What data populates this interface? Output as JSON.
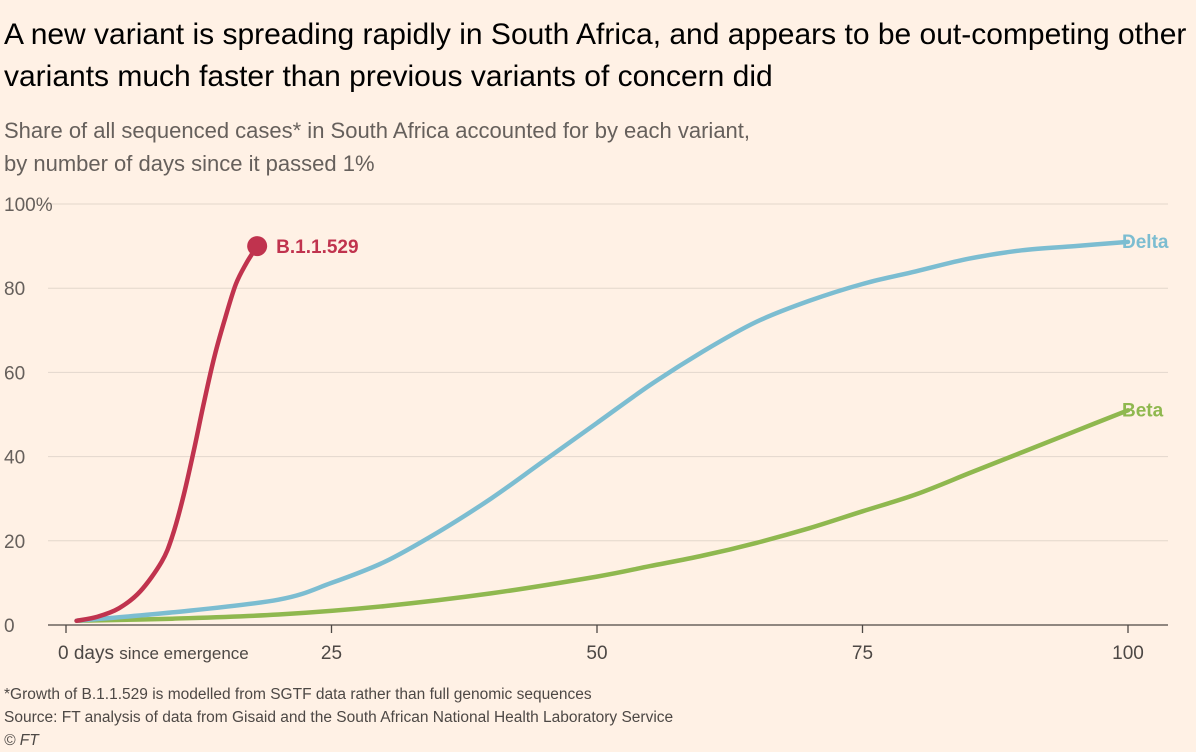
{
  "title": "A new variant is spreading rapidly in South Africa, and appears to be out-competing other variants much faster than previous variants of concern did",
  "subtitle_line1": "Share of all sequenced cases* in South Africa accounted for by each variant,",
  "subtitle_line2": "by number of days since it passed 1%",
  "footnote": "*Growth of B.1.1.529 is modelled from SGTF data rather than full genomic sequences",
  "source": "Source: FT analysis of data from Gisaid and the South African National Health Laboratory Service",
  "copyright": "© FT",
  "chart_data": {
    "type": "line",
    "title": "A new variant is spreading rapidly in South Africa, and appears to be out-competing other variants much faster than previous variants of concern did",
    "xlabel": "days since emergence",
    "ylabel": "Share of all sequenced cases (%)",
    "xlim": [
      0,
      100
    ],
    "ylim": [
      0,
      100
    ],
    "x_tick_values": [
      0,
      25,
      50,
      75,
      100
    ],
    "x_tick_labels": [
      "0",
      "25",
      "50",
      "75",
      "100"
    ],
    "x_first_tick_word": "days",
    "x_first_tick_suffix": "since emergence",
    "y_tick_values": [
      0,
      20,
      40,
      60,
      80,
      100
    ],
    "y_tick_labels": [
      "0",
      "20",
      "40",
      "60",
      "80",
      "100%"
    ],
    "grid": true,
    "series": [
      {
        "name": "B.1.1.529",
        "color": "#c0334e",
        "end_marker": true,
        "x": [
          1,
          3,
          5,
          7,
          9,
          10,
          11,
          12,
          13,
          14,
          15,
          16,
          17,
          18
        ],
        "values": [
          1,
          2,
          4,
          8,
          15,
          21,
          30,
          41,
          53,
          64,
          73,
          81,
          86,
          90
        ]
      },
      {
        "name": "Delta",
        "color": "#7cbdd1",
        "end_marker": false,
        "x": [
          1,
          10,
          20,
          25,
          30,
          35,
          40,
          45,
          50,
          55,
          60,
          65,
          70,
          75,
          80,
          85,
          90,
          95,
          100
        ],
        "values": [
          1,
          3,
          6,
          10,
          15,
          22,
          30,
          39,
          48,
          57,
          65,
          72,
          77,
          81,
          84,
          87,
          89,
          90,
          91
        ]
      },
      {
        "name": "Beta",
        "color": "#8fb84f",
        "end_marker": false,
        "x": [
          1,
          10,
          20,
          30,
          40,
          50,
          55,
          60,
          65,
          70,
          75,
          80,
          85,
          90,
          95,
          100
        ],
        "values": [
          1,
          1.5,
          2.5,
          4.5,
          7.5,
          11.5,
          14,
          16.5,
          19.5,
          23,
          27,
          31,
          36,
          41,
          46,
          51
        ]
      }
    ]
  }
}
